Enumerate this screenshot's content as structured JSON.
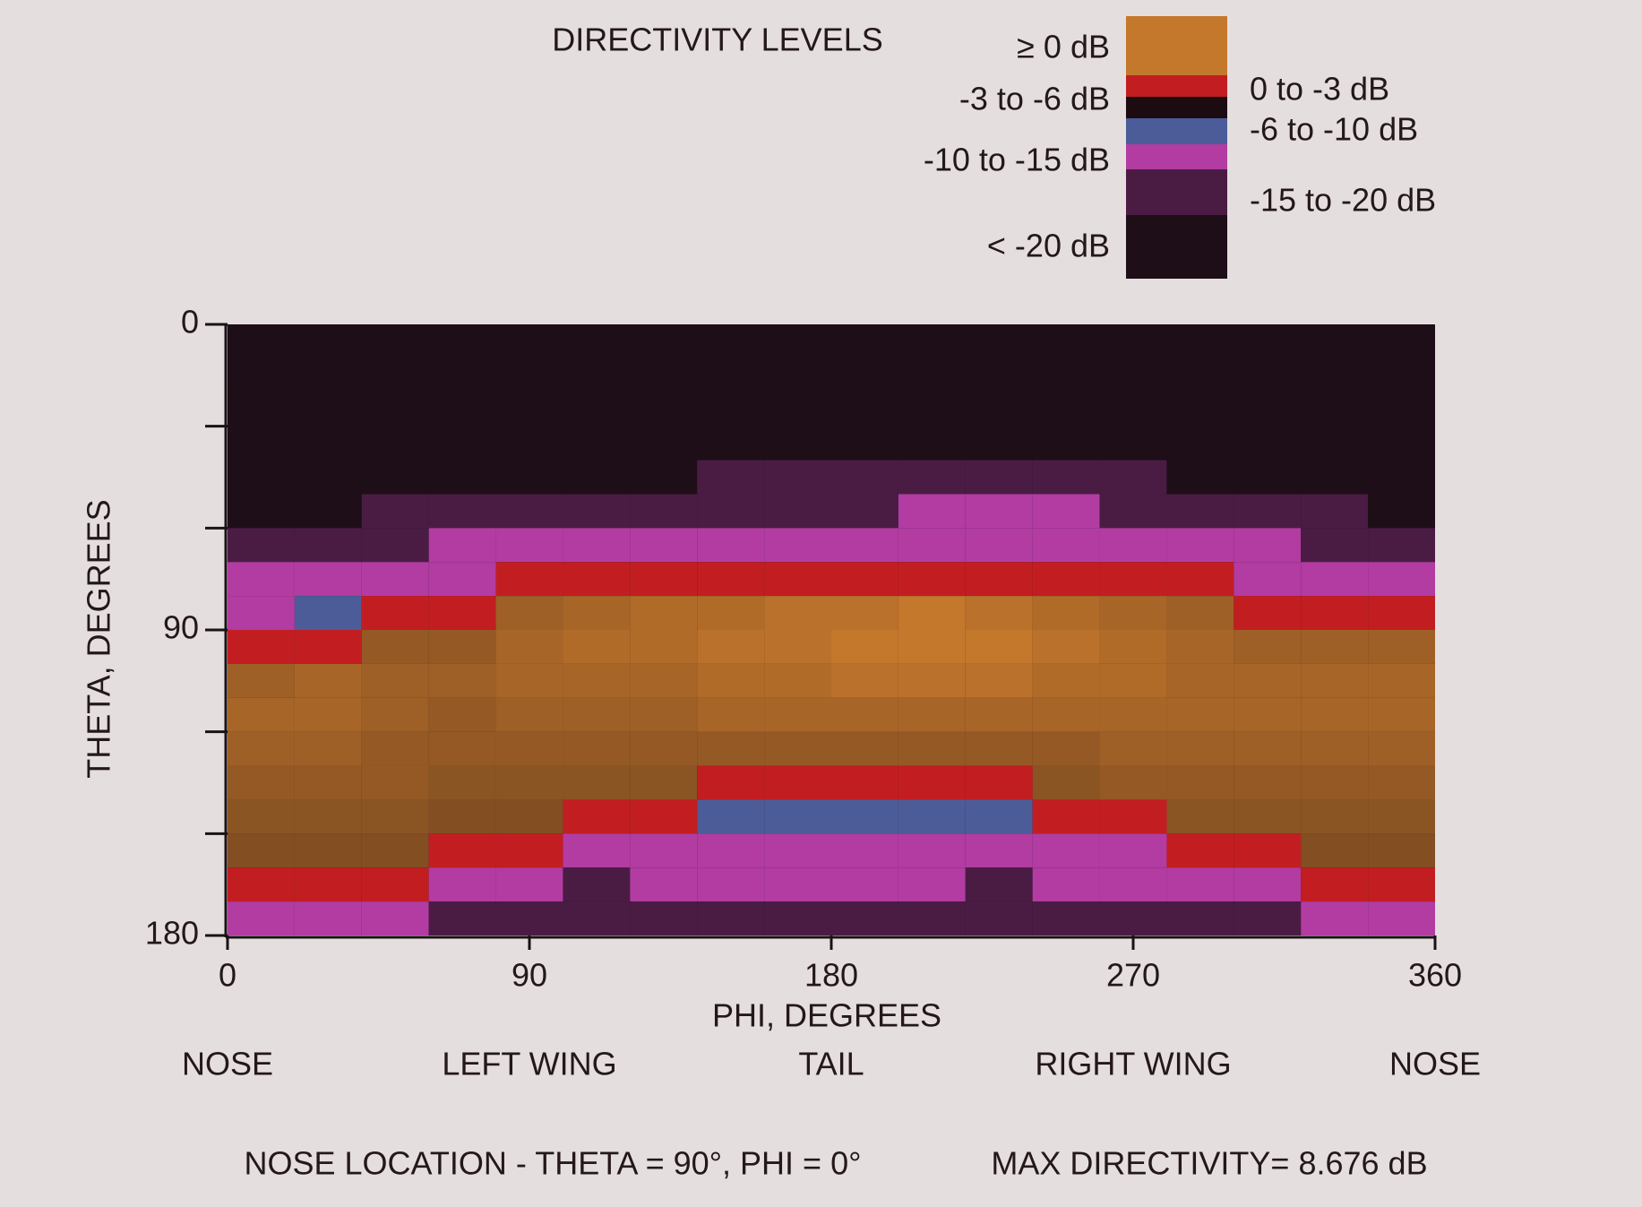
{
  "chart_data": {
    "type": "heatmap",
    "title": "DIRECTIVITY LEVELS",
    "xlabel": "PHI, DEGREES",
    "ylabel": "THETA, DEGREES",
    "xlim": [
      0,
      360
    ],
    "ylim": [
      0,
      180
    ],
    "y_inverted": true,
    "xticks": [
      0,
      90,
      180,
      270,
      360
    ],
    "yticks": [
      0,
      {
        "value": 30,
        "label": null
      },
      {
        "value": 60,
        "label": null
      },
      90,
      {
        "value": 120,
        "label": null
      },
      {
        "value": 150,
        "label": null
      },
      180
    ],
    "x_annotations": [
      {
        "value": 0,
        "label": "NOSE"
      },
      {
        "value": 90,
        "label": "LEFT WING"
      },
      {
        "value": 180,
        "label": "TAIL"
      },
      {
        "value": 270,
        "label": "RIGHT WING"
      },
      {
        "value": 360,
        "label": "NOSE"
      }
    ],
    "levels": [
      {
        "label": "≥ 0 dB",
        "min": 0,
        "color": "#c4782c"
      },
      {
        "label": "0 to -3 dB",
        "min": -3,
        "color": "#c21e22"
      },
      {
        "label": "-3 to -6 dB",
        "min": -6,
        "color": "#1c0c12"
      },
      {
        "label": "-6 to -10 dB",
        "min": -10,
        "color": "#4c5c98"
      },
      {
        "label": "-10 to -15 dB",
        "min": -15,
        "color": "#b23ca2"
      },
      {
        "label": "-15 to -20 dB",
        "min": -20,
        "color": "#4a1c44"
      },
      {
        "label": "< -20 dB",
        "min": null,
        "color": "#1e0e18"
      }
    ],
    "x": [
      10,
      30,
      50,
      70,
      90,
      110,
      130,
      150,
      170,
      190,
      210,
      230,
      250,
      270,
      290,
      310,
      330,
      350
    ],
    "y": [
      5,
      15,
      25,
      35,
      45,
      55,
      65,
      75,
      85,
      95,
      105,
      115,
      125,
      135,
      145,
      155,
      165,
      175
    ],
    "z": [
      [
        -25,
        -25,
        -25,
        -25,
        -25,
        -25,
        -17,
        -12,
        -12,
        -1.5,
        4,
        5,
        4,
        3,
        2,
        1,
        -1.5,
        -12
      ],
      [
        -25,
        -25,
        -25,
        -25,
        -25,
        -25,
        -17,
        -12,
        -8,
        -1.5,
        5,
        5,
        4,
        3,
        2,
        1,
        -1.5,
        -12
      ],
      [
        -25,
        -25,
        -25,
        -25,
        -25,
        -17,
        -17,
        -12,
        -1.5,
        3,
        4,
        4,
        3,
        3,
        2,
        1,
        -1.5,
        -12
      ],
      [
        -25,
        -25,
        -25,
        -25,
        -25,
        -17,
        -12,
        -12,
        -1.5,
        3,
        4,
        3,
        3,
        2,
        1,
        -1.5,
        -12,
        -17
      ],
      [
        -25,
        -25,
        -25,
        -25,
        -25,
        -17,
        -12,
        -1.5,
        4,
        5,
        5,
        4,
        3,
        2,
        1,
        -1.5,
        -12,
        -17
      ],
      [
        -25,
        -25,
        -25,
        -25,
        -25,
        -17,
        -12,
        -1.5,
        5,
        6,
        5,
        4,
        3,
        2,
        -1.5,
        -12,
        -17,
        -17
      ],
      [
        -25,
        -25,
        -25,
        -25,
        -25,
        -17,
        -12,
        -1.5,
        6,
        6,
        5,
        4,
        3,
        2,
        -1.5,
        -12,
        -12,
        -17
      ],
      [
        -25,
        -25,
        -25,
        -25,
        -17,
        -17,
        -12,
        -1.5,
        6,
        7,
        6,
        5,
        3,
        -1.5,
        -8,
        -12,
        -12,
        -17
      ],
      [
        -25,
        -25,
        -25,
        -25,
        -17,
        -17,
        -12,
        -1.5,
        7,
        7,
        6,
        5,
        3,
        -1.5,
        -8,
        -12,
        -12,
        -17
      ],
      [
        -25,
        -25,
        -25,
        -25,
        -17,
        -17,
        -12,
        -1.5,
        7,
        8,
        7,
        5,
        3,
        -1.5,
        -8,
        -12,
        -12,
        -17
      ],
      [
        -25,
        -25,
        -25,
        -25,
        -17,
        -12,
        -12,
        -1.5,
        8,
        8,
        7,
        5,
        3,
        -1.5,
        -8,
        -12,
        -12,
        -17
      ],
      [
        -25,
        -25,
        -25,
        -25,
        -17,
        -12,
        -12,
        -1.5,
        7,
        8,
        7,
        5,
        3,
        -1.5,
        -8,
        -12,
        -17,
        -17
      ],
      [
        -25,
        -25,
        -25,
        -25,
        -17,
        -12,
        -12,
        -1.5,
        6,
        7,
        6,
        5,
        3,
        2,
        -1.5,
        -12,
        -12,
        -17
      ],
      [
        -25,
        -25,
        -25,
        -25,
        -17,
        -17,
        -12,
        -1.5,
        5,
        6,
        6,
        5,
        4,
        3,
        -1.5,
        -12,
        -12,
        -17
      ],
      [
        -25,
        -25,
        -25,
        -25,
        -25,
        -17,
        -12,
        -1.5,
        4,
        5,
        5,
        5,
        4,
        3,
        2,
        -1.5,
        -12,
        -17
      ],
      [
        -25,
        -25,
        -25,
        -25,
        -25,
        -17,
        -12,
        -12,
        -1.5,
        4,
        5,
        5,
        4,
        3,
        2,
        -1.5,
        -12,
        -17
      ],
      [
        -25,
        -25,
        -25,
        -25,
        -25,
        -17,
        -17,
        -12,
        -1.5,
        4,
        5,
        5,
        4,
        3,
        2,
        1,
        -1.5,
        -12
      ],
      [
        -25,
        -25,
        -25,
        -25,
        -25,
        -25,
        -17,
        -12,
        -1.5,
        4,
        5,
        5,
        4,
        3,
        2,
        1,
        -1.5,
        -12
      ]
    ],
    "footer_left": "NOSE LOCATION - THETA = 90°, PHI = 0°",
    "footer_right": "MAX DIRECTIVITY= 8.676 dB"
  }
}
